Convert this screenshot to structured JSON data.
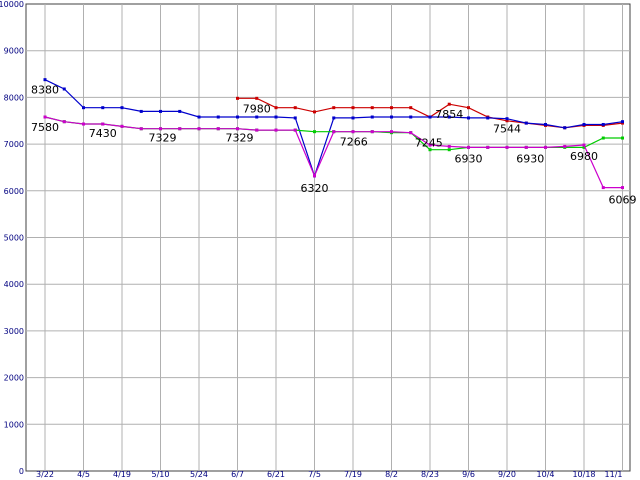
{
  "chart_data": {
    "type": "line",
    "ylim": [
      0,
      10000
    ],
    "yticks": [
      0,
      1000,
      2000,
      3000,
      4000,
      5000,
      6000,
      7000,
      8000,
      9000,
      10000
    ],
    "x_count": 30,
    "xtick_labels": [
      {
        "i": 0,
        "label": "3/22"
      },
      {
        "i": 2,
        "label": "4/5"
      },
      {
        "i": 4,
        "label": "4/19"
      },
      {
        "i": 6,
        "label": "5/10"
      },
      {
        "i": 8,
        "label": "5/24"
      },
      {
        "i": 10,
        "label": "6/7"
      },
      {
        "i": 12,
        "label": "6/21"
      },
      {
        "i": 14,
        "label": "7/5"
      },
      {
        "i": 16,
        "label": "7/19"
      },
      {
        "i": 18,
        "label": "8/2"
      },
      {
        "i": 20,
        "label": "8/23"
      },
      {
        "i": 22,
        "label": "9/6"
      },
      {
        "i": 24,
        "label": "9/20"
      },
      {
        "i": 26,
        "label": "10/4"
      },
      {
        "i": 28,
        "label": "10/18"
      },
      {
        "i": 30,
        "label": "11/1"
      }
    ],
    "grid": true,
    "series": [
      {
        "color": "#cc0000",
        "x": [
          10,
          11,
          12,
          13,
          14,
          15,
          16,
          17,
          18,
          19,
          20,
          21,
          22,
          23,
          24,
          25,
          26,
          27,
          28,
          29,
          30
        ],
        "values": [
          7980,
          7980,
          7780,
          7780,
          7690,
          7780,
          7780,
          7780,
          7780,
          7780,
          7580,
          7854,
          7780,
          7580,
          7500,
          7450,
          7400,
          7350,
          7400,
          7400,
          7450
        ]
      },
      {
        "color": "#0000cc",
        "x": [
          0,
          1,
          2,
          3,
          4,
          5,
          6,
          7,
          8,
          9,
          10,
          11,
          12,
          13,
          14,
          15,
          16,
          17,
          18,
          19,
          20,
          21,
          22,
          23,
          24,
          25,
          26,
          27,
          28,
          29,
          30
        ],
        "values": [
          8380,
          8180,
          7780,
          7780,
          7780,
          7700,
          7700,
          7700,
          7580,
          7580,
          7580,
          7580,
          7580,
          7560,
          6320,
          7560,
          7560,
          7580,
          7580,
          7580,
          7580,
          7580,
          7560,
          7560,
          7544,
          7450,
          7420,
          7350,
          7420,
          7420,
          7480
        ]
      },
      {
        "color": "#00cc00",
        "x": [
          0,
          1,
          2,
          3,
          4,
          5,
          6,
          7,
          8,
          9,
          10,
          11,
          12,
          13,
          14,
          15,
          16,
          17,
          18,
          19,
          20,
          21,
          22,
          23,
          24,
          25,
          26,
          27,
          28,
          29,
          30
        ],
        "values": [
          7580,
          7480,
          7430,
          7430,
          7380,
          7329,
          7329,
          7329,
          7329,
          7329,
          7329,
          7300,
          7300,
          7300,
          7266,
          7266,
          7266,
          7266,
          7245,
          7245,
          6880,
          6880,
          6930,
          6930,
          6930,
          6930,
          6930,
          6930,
          6930,
          7130,
          7130
        ]
      },
      {
        "color": "#cc00cc",
        "x": [
          0,
          1,
          2,
          3,
          4,
          5,
          6,
          7,
          8,
          9,
          10,
          11,
          12,
          13,
          14,
          15,
          16,
          17,
          18,
          19,
          20,
          21,
          22,
          23,
          24,
          25,
          26,
          27,
          28,
          29,
          30
        ],
        "values": [
          7580,
          7480,
          7430,
          7430,
          7380,
          7329,
          7329,
          7329,
          7329,
          7329,
          7329,
          7300,
          7300,
          7300,
          6320,
          7266,
          7266,
          7266,
          7266,
          7245,
          6980,
          6950,
          6930,
          6930,
          6930,
          6930,
          6930,
          6950,
          6980,
          6069,
          6069
        ]
      }
    ],
    "data_labels": [
      {
        "x": 0,
        "value": 8380,
        "text": "8380",
        "dx": -14,
        "dy": 14
      },
      {
        "x": 0,
        "value": 7580,
        "text": "7580",
        "dx": -14,
        "dy": 14
      },
      {
        "x": 3,
        "value": 7430,
        "text": "7430",
        "dx": -14,
        "dy": 13
      },
      {
        "x": 6,
        "value": 7329,
        "text": "7329",
        "dx": -12,
        "dy": 13
      },
      {
        "x": 10,
        "value": 7329,
        "text": "7329",
        "dx": -12,
        "dy": 13
      },
      {
        "x": 11,
        "value": 7980,
        "text": "7980",
        "dx": -14,
        "dy": 14
      },
      {
        "x": 14,
        "value": 6320,
        "text": "6320",
        "dx": -14,
        "dy": 16
      },
      {
        "x": 15,
        "value": 7266,
        "text": "7266",
        "dx": 6,
        "dy": 14
      },
      {
        "x": 19,
        "value": 7245,
        "text": "7245",
        "dx": 4,
        "dy": 14
      },
      {
        "x": 21,
        "value": 7854,
        "text": "7854",
        "dx": -14,
        "dy": 14
      },
      {
        "x": 22,
        "value": 6930,
        "text": "6930",
        "dx": -14,
        "dy": 15
      },
      {
        "x": 24,
        "value": 7544,
        "text": "7544",
        "dx": -14,
        "dy": 14
      },
      {
        "x": 25,
        "value": 6930,
        "text": "6930",
        "dx": -10,
        "dy": 15
      },
      {
        "x": 28,
        "value": 6980,
        "text": "6980",
        "dx": -14,
        "dy": 15
      },
      {
        "x": 30,
        "value": 6069,
        "text": "6069",
        "dx": -14,
        "dy": 16
      }
    ]
  }
}
